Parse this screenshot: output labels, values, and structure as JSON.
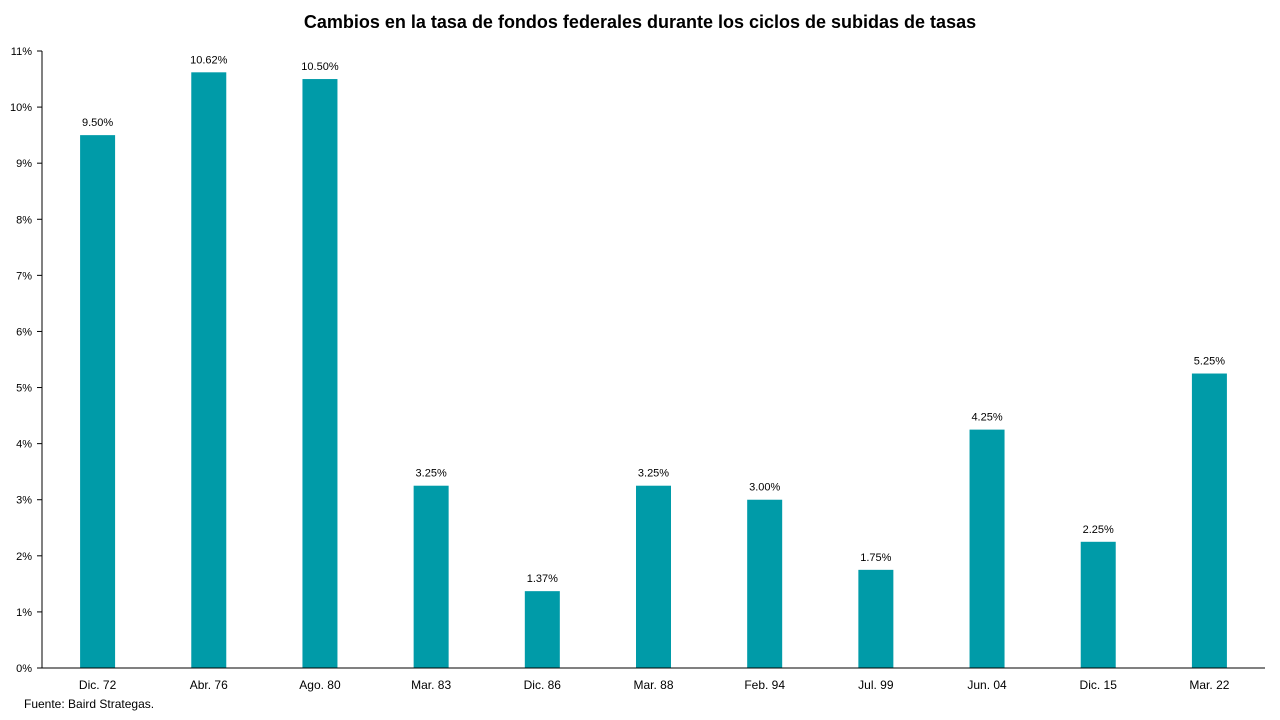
{
  "chart_data": {
    "type": "bar",
    "title": "Cambios en la tasa de fondos federales durante los ciclos de subidas de tasas",
    "categories": [
      "Dic. 72",
      "Abr. 76",
      "Ago. 80",
      "Mar. 83",
      "Dic. 86",
      "Mar. 88",
      "Feb. 94",
      "Jul. 99",
      "Jun. 04",
      "Dic. 15",
      "Mar. 22"
    ],
    "values": [
      9.5,
      10.62,
      10.5,
      3.25,
      1.37,
      3.25,
      3.0,
      1.75,
      4.25,
      2.25,
      5.25
    ],
    "value_labels": [
      "9.50%",
      "10.62%",
      "10.50%",
      "3.25%",
      "1.37%",
      "3.25%",
      "3.00%",
      "1.75%",
      "4.25%",
      "2.25%",
      "5.25%"
    ],
    "xlabel": "",
    "ylabel": "",
    "ylim": [
      0,
      11
    ],
    "yticks": [
      0,
      1,
      2,
      3,
      4,
      5,
      6,
      7,
      8,
      9,
      10,
      11
    ],
    "ytick_labels": [
      "0%",
      "1%",
      "2%",
      "3%",
      "4%",
      "5%",
      "6%",
      "7%",
      "8%",
      "9%",
      "10%",
      "11%"
    ],
    "grid": false,
    "legend": "none",
    "bar_color": "#009BA8",
    "axis_color": "#000000"
  },
  "footer": {
    "source": "Fuente: Baird Strategas."
  }
}
